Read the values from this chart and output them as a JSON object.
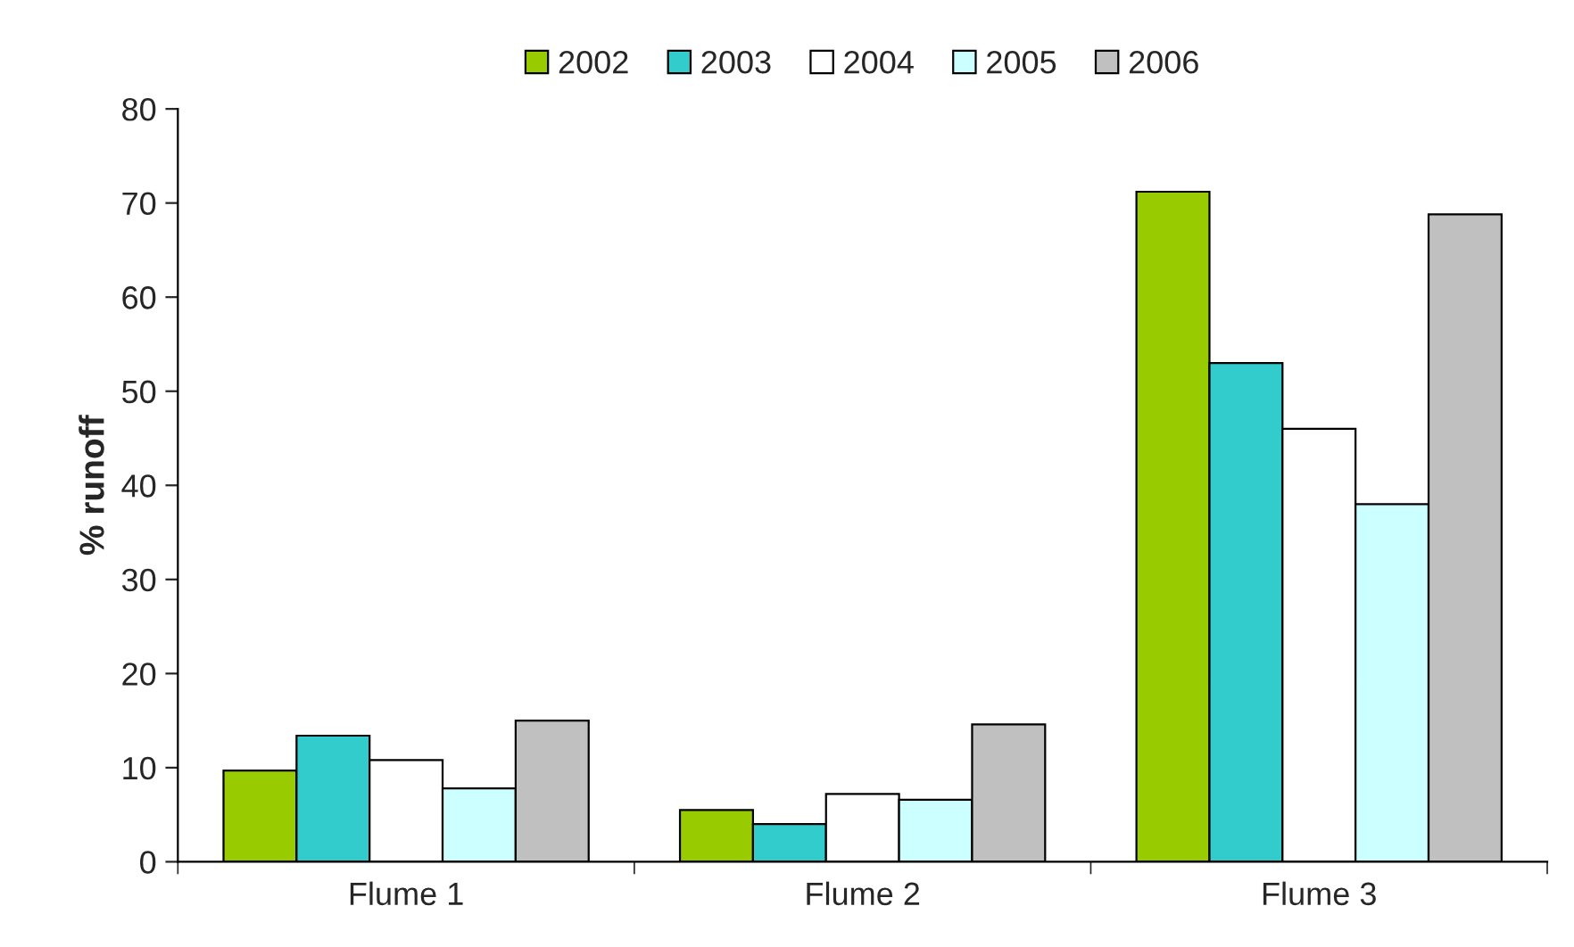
{
  "chart_data": {
    "type": "bar",
    "ylabel": "% runoff",
    "categories": [
      "Flume 1",
      "Flume 2",
      "Flume 3"
    ],
    "series": [
      {
        "name": "2002",
        "color": "#99cc00",
        "values": [
          9.7,
          5.5,
          71.2
        ]
      },
      {
        "name": "2003",
        "color": "#33cccc",
        "values": [
          13.4,
          4.0,
          53.0
        ]
      },
      {
        "name": "2004",
        "color": "#ffffff",
        "values": [
          10.8,
          7.2,
          46.0
        ]
      },
      {
        "name": "2005",
        "color": "#ccffff",
        "values": [
          7.8,
          6.6,
          38.0
        ]
      },
      {
        "name": "2006",
        "color": "#c0c0c0",
        "values": [
          15.0,
          14.6,
          68.8
        ]
      }
    ],
    "ylim": [
      0,
      80
    ],
    "yticks": [
      0,
      10,
      20,
      30,
      40,
      50,
      60,
      70,
      80
    ],
    "grid": false,
    "legend": "top"
  }
}
